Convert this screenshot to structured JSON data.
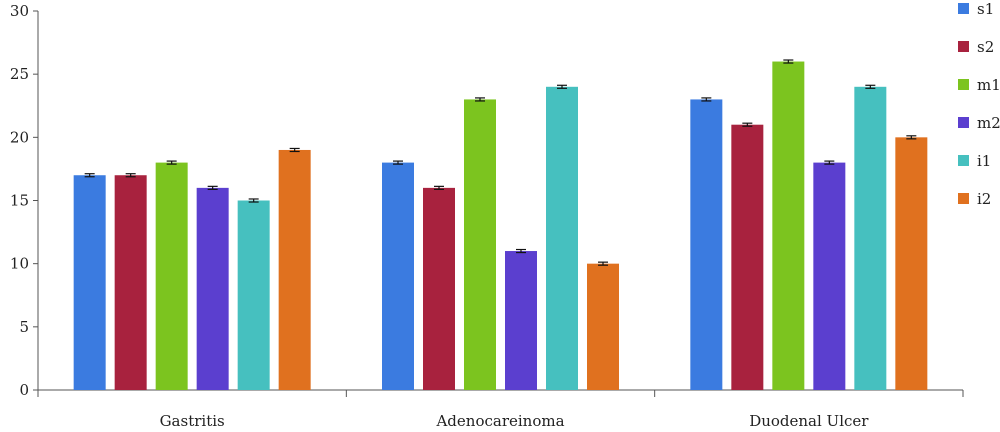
{
  "chart_data": {
    "type": "bar",
    "categories": [
      "Gastritis",
      "Adenocareinoma",
      "Duodenal Ulcer"
    ],
    "series": [
      {
        "name": "s1",
        "color": "#3b7be0",
        "values": [
          17,
          18,
          23
        ]
      },
      {
        "name": "s2",
        "color": "#a8223e",
        "values": [
          17,
          16,
          21
        ]
      },
      {
        "name": "m1",
        "color": "#7cc41f",
        "values": [
          18,
          23,
          26
        ]
      },
      {
        "name": "m2",
        "color": "#5b3fcf",
        "values": [
          16,
          11,
          18
        ]
      },
      {
        "name": "i1",
        "color": "#46c0bf",
        "values": [
          15,
          24,
          24
        ]
      },
      {
        "name": "i2",
        "color": "#e0711f",
        "values": [
          19,
          10,
          20
        ]
      }
    ],
    "error_bars": true,
    "ylim": [
      0,
      30
    ],
    "yticks": [
      0,
      5,
      10,
      15,
      20,
      25,
      30
    ],
    "title": "",
    "xlabel": "",
    "ylabel": "",
    "legend_position": "right",
    "grid": false
  }
}
